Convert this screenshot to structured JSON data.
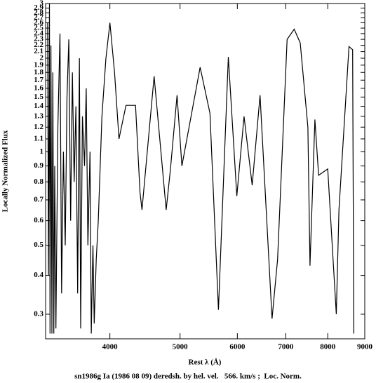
{
  "chart_data": {
    "type": "line",
    "title": "sn1986g Ia (1986 08 09) deredsh. by hel. vel.   566. km/s ;  Loc. Norm.",
    "xlabel": "Rest λ (Å)",
    "ylabel": "Locally Normalized Flux",
    "xscale": "log",
    "yscale": "log",
    "xlim": [
      3260,
      9000
    ],
    "ylim": [
      0.25,
      3
    ],
    "xticks": [
      4000,
      5000,
      6000,
      7000,
      8000,
      9000
    ],
    "yticks": [
      0.3,
      0.4,
      0.5,
      0.6,
      0.7,
      0.8,
      0.9,
      1,
      1.1,
      1.2,
      1.3,
      1.4,
      1.5,
      1.6,
      1.7,
      1.8,
      1.9,
      2,
      2.1,
      2.2,
      2.3,
      2.4,
      2.5,
      2.6,
      2.7,
      2.8,
      2.9,
      3
    ],
    "x": [
      3281,
      3290,
      3300,
      3306,
      3316,
      3326,
      3336,
      3346,
      3356,
      3369,
      3390,
      3413,
      3430,
      3450,
      3470,
      3490,
      3510,
      3530,
      3550,
      3570,
      3590,
      3610,
      3630,
      3645,
      3665,
      3690,
      3710,
      3730,
      3755,
      3770,
      3790,
      3805,
      3830,
      3855,
      3900,
      3950,
      4000,
      4060,
      4117,
      4210,
      4340,
      4402,
      4430,
      4604,
      4785,
      4850,
      4953,
      5030,
      5330,
      5500,
      5650,
      5830,
      5990,
      6130,
      6290,
      6450,
      6700,
      6820,
      7030,
      7190,
      7330,
      7510,
      7560,
      7680,
      7770,
      8000,
      8220,
      8290,
      8560,
      8660,
      8690
    ],
    "series": [
      {
        "color": "#000000",
        "values": [
          2.6,
          0.4,
          3.0,
          0.26,
          2.2,
          0.26,
          1.8,
          0.26,
          0.9,
          0.27,
          1.2,
          2.4,
          0.35,
          1.0,
          0.5,
          1.5,
          2.3,
          0.6,
          1.8,
          0.8,
          1.4,
          0.35,
          2.0,
          0.27,
          1.3,
          0.9,
          1.6,
          0.5,
          1.0,
          0.26,
          0.5,
          0.28,
          0.45,
          0.6,
          1.3,
          2.0,
          2.6,
          1.8,
          1.1,
          1.41,
          1.41,
          0.74,
          0.65,
          1.75,
          0.65,
          0.88,
          1.52,
          0.9,
          1.87,
          1.33,
          0.31,
          2.02,
          0.72,
          1.3,
          0.78,
          1.52,
          0.29,
          0.45,
          2.3,
          2.48,
          2.24,
          1.2,
          0.43,
          1.27,
          0.84,
          0.88,
          0.3,
          0.65,
          2.18,
          2.13,
          0.26
        ]
      }
    ]
  }
}
